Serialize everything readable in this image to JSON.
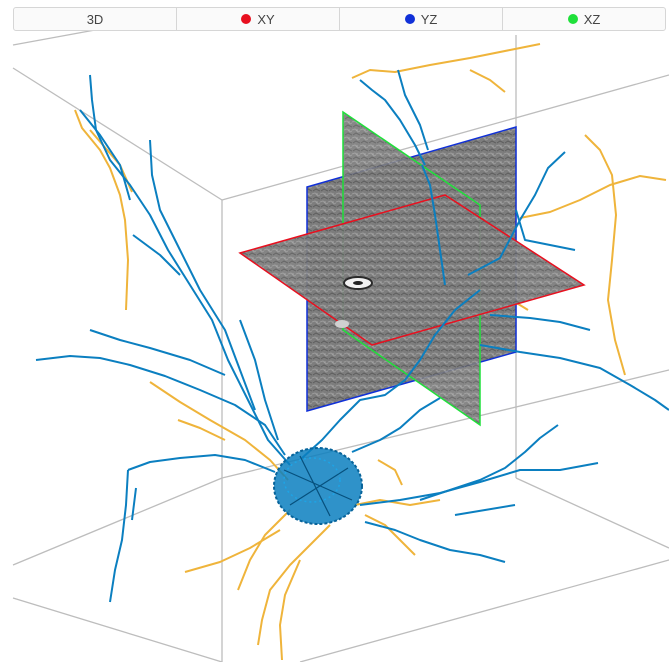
{
  "tabs": [
    {
      "label": "3D",
      "dot": null
    },
    {
      "label": "XY",
      "dot": "#e8101f"
    },
    {
      "label": "YZ",
      "dot": "#1030d8"
    },
    {
      "label": "XZ",
      "dot": "#1fe03a"
    }
  ],
  "colors": {
    "dendrite_blue": "#0b7fc0",
    "dendrite_yellow": "#efb43b",
    "box_edge": "#bdbdbd",
    "plane_xy_border": "#e8101f",
    "plane_yz_border": "#1030d8",
    "plane_xz_border": "#1fe03a",
    "slice_gray": "#7b7b7b"
  }
}
